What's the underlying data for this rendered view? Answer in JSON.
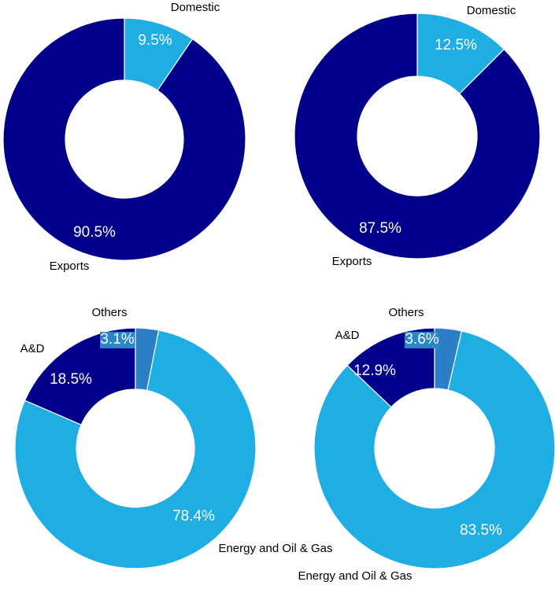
{
  "colors": {
    "dark_blue": "#00008b",
    "light_blue": "#1eaee3",
    "mid_blue": "#2a7fc7",
    "pct_box": "#2a86c8"
  },
  "chart_data": [
    {
      "type": "pie",
      "donut": true,
      "slices": [
        {
          "label": "Domestic",
          "value": 9.5,
          "value_label": "9.5%",
          "color": "#1eaee3"
        },
        {
          "label": "Exports",
          "value": 90.5,
          "value_label": "90.5%",
          "color": "#00008b"
        }
      ]
    },
    {
      "type": "pie",
      "donut": true,
      "slices": [
        {
          "label": "Domestic",
          "value": 12.5,
          "value_label": "12.5%",
          "color": "#1eaee3"
        },
        {
          "label": "Exports",
          "value": 87.5,
          "value_label": "87.5%",
          "color": "#00008b"
        }
      ]
    },
    {
      "type": "pie",
      "donut": true,
      "slices": [
        {
          "label": "Energy and Oil & Gas",
          "value": 78.4,
          "value_label": "78.4%",
          "color": "#1eaee3"
        },
        {
          "label": "A&D",
          "value": 18.5,
          "value_label": "18.5%",
          "color": "#00008b"
        },
        {
          "label": "Others",
          "value": 3.1,
          "value_label": "3.1%",
          "color": "#2a7fc7"
        }
      ]
    },
    {
      "type": "pie",
      "donut": true,
      "slices": [
        {
          "label": "Energy and Oil & Gas",
          "value": 83.5,
          "value_label": "83.5%",
          "color": "#1eaee3"
        },
        {
          "label": "A&D",
          "value": 12.9,
          "value_label": "12.9%",
          "color": "#00008b"
        },
        {
          "label": "Others",
          "value": 3.6,
          "value_label": "3.6%",
          "color": "#2a7fc7"
        }
      ]
    }
  ]
}
